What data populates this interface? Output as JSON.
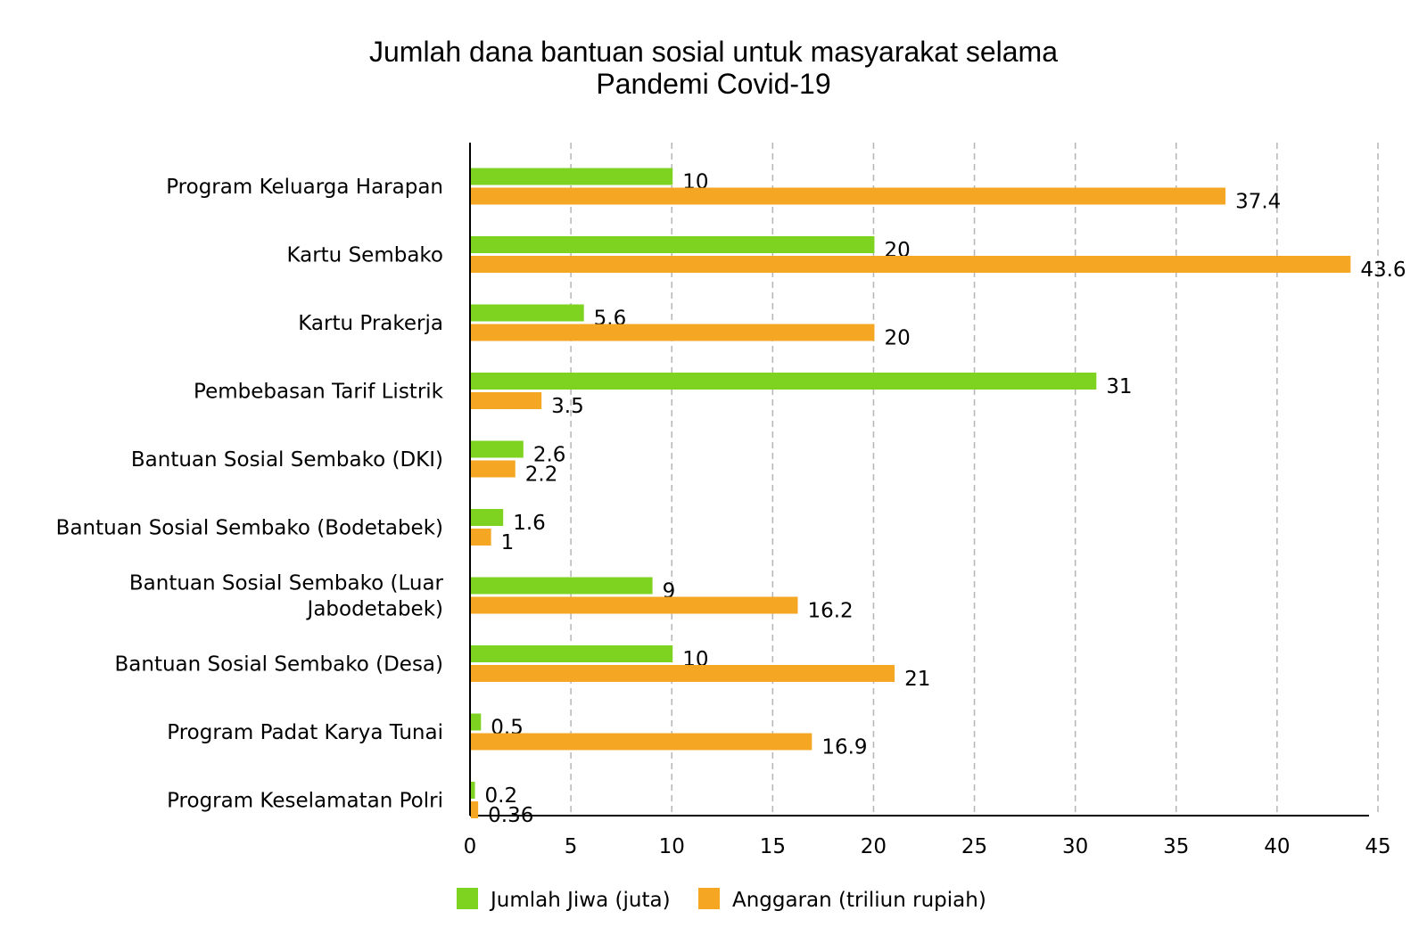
{
  "chart_data": {
    "type": "bar",
    "orientation": "horizontal",
    "title_lines": [
      "Jumlah dana bantuan sosial untuk masyarakat selama",
      "Pandemi Covid-19"
    ],
    "categories": [
      [
        "Program Keluarga Harapan"
      ],
      [
        "Kartu Sembako"
      ],
      [
        "Kartu Prakerja"
      ],
      [
        "Pembebasan Tarif Listrik"
      ],
      [
        "Bantuan Sosial Sembako (DKI)"
      ],
      [
        "Bantuan Sosial Sembako (Bodetabek)"
      ],
      [
        "Bantuan Sosial Sembako (Luar",
        "Jabodetabek)"
      ],
      [
        "Bantuan Sosial Sembako (Desa)"
      ],
      [
        "Program Padat Karya Tunai"
      ],
      [
        "Program Keselamatan Polri"
      ]
    ],
    "series": [
      {
        "name": "Jumlah Jiwa (juta)",
        "color": "#7ed321",
        "values": [
          10,
          20,
          5.6,
          31,
          2.6,
          1.6,
          9,
          10,
          0.5,
          0.2
        ],
        "labels": [
          "10",
          "20",
          "5.6",
          "31",
          "2.6",
          "1.6",
          "9",
          "10",
          "0.5",
          "0.2"
        ]
      },
      {
        "name": "Anggaran (triliun rupiah)",
        "color": "#f5a623",
        "values": [
          37.4,
          43.6,
          20,
          3.5,
          2.2,
          1,
          16.2,
          21,
          16.9,
          0.36
        ],
        "labels": [
          "37.4",
          "43.6",
          "20",
          "3.5",
          "2.2",
          "1",
          "16.2",
          "21",
          "16.9",
          "0.36"
        ]
      }
    ],
    "xlim": [
      0,
      45
    ],
    "xticks": [
      "0",
      "5",
      "10",
      "15",
      "20",
      "25",
      "30",
      "35",
      "40",
      "45"
    ],
    "grid": "vertical dashed",
    "legend_position": "bottom"
  }
}
